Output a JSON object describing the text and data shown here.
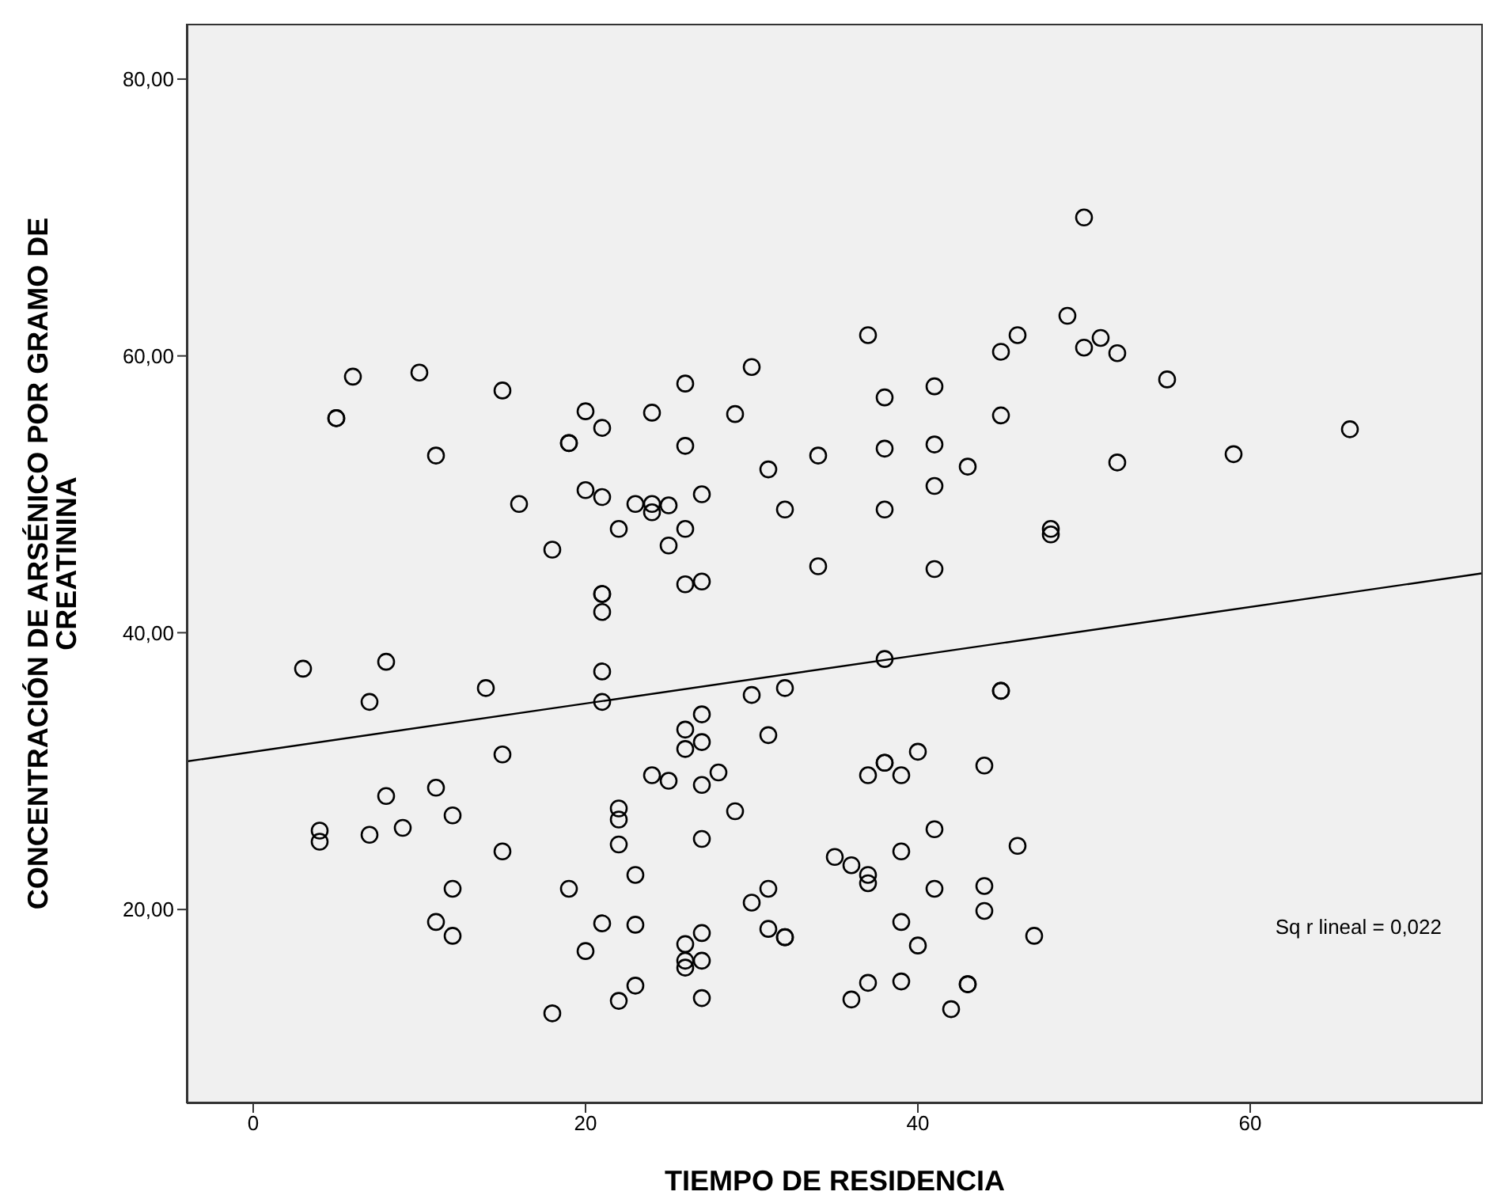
{
  "chart_data": {
    "type": "scatter",
    "xlabel": "TIEMPO DE RESIDENCIA",
    "ylabel": "CONCENTRACIÓN DE ARSÉNICO POR GRAMO DE CREATININA",
    "xlim": [
      -4,
      74
    ],
    "ylim": [
      6,
      84
    ],
    "xticks": [
      0,
      20,
      40,
      60
    ],
    "yticks": [
      {
        "value": 20,
        "label": "20,00"
      },
      {
        "value": 40,
        "label": "40,00"
      },
      {
        "value": 60,
        "label": "60,00"
      },
      {
        "value": 80,
        "label": "80,00"
      }
    ],
    "grid": false,
    "annotations": [
      "Sq r lineal = 0,022"
    ],
    "series": [
      {
        "color": "#000000",
        "marker": "circle",
        "x": [
          5,
          5,
          6,
          10,
          11,
          15,
          16,
          18,
          19,
          19,
          20,
          20,
          21,
          21,
          21,
          21,
          21,
          22,
          23,
          24,
          24,
          24,
          25,
          25,
          26,
          26,
          26,
          26,
          27,
          27,
          29,
          30,
          31,
          32,
          34,
          34,
          37,
          38,
          38,
          38,
          41,
          41,
          41,
          41,
          43,
          45,
          45,
          46,
          48,
          48,
          49,
          50,
          50,
          51,
          52,
          52,
          55,
          59,
          66,
          3,
          7,
          8,
          14,
          21,
          21,
          38,
          45,
          45,
          15,
          26,
          26,
          27,
          27,
          30,
          31,
          32,
          24,
          25,
          27,
          28,
          37,
          38,
          38,
          39,
          40,
          44,
          4,
          4,
          7,
          8,
          9,
          11,
          12,
          15,
          22,
          22,
          22,
          27,
          29,
          41,
          39,
          46,
          35,
          36,
          37,
          37,
          12,
          19,
          23,
          31,
          41,
          44,
          44,
          11,
          12,
          20,
          21,
          23,
          26,
          27,
          26,
          26,
          27,
          30,
          31,
          32,
          32,
          39,
          40,
          47,
          18,
          22,
          23,
          27,
          36,
          37,
          39,
          42,
          43,
          43
        ],
        "values": [
          55.5,
          55.5,
          58.5,
          58.8,
          52.8,
          57.5,
          49.3,
          46,
          53.7,
          53.7,
          56,
          50.3,
          54.8,
          49.8,
          42.8,
          42.8,
          41.5,
          47.5,
          49.3,
          49.3,
          48.7,
          55.9,
          49.2,
          46.3,
          58,
          53.5,
          47.5,
          43.5,
          50,
          43.7,
          55.8,
          59.2,
          51.8,
          48.9,
          52.8,
          44.8,
          61.5,
          57,
          53.3,
          48.9,
          57.8,
          53.6,
          50.6,
          44.6,
          52,
          60.3,
          55.7,
          61.5,
          47.5,
          47.1,
          62.9,
          70,
          60.6,
          61.3,
          60.2,
          52.3,
          58.3,
          52.9,
          54.7,
          37.4,
          35,
          37.9,
          36,
          37.2,
          35,
          38.1,
          35.8,
          35.8,
          31.2,
          33,
          31.6,
          34.1,
          32.1,
          35.5,
          32.6,
          36,
          29.7,
          29.3,
          29,
          29.9,
          29.7,
          30.6,
          30.6,
          29.7,
          31.4,
          30.4,
          25.7,
          24.9,
          25.4,
          28.2,
          25.9,
          28.8,
          26.8,
          24.2,
          27.3,
          26.5,
          24.7,
          25.1,
          27.1,
          25.8,
          24.2,
          24.6,
          23.8,
          23.2,
          22.5,
          21.9,
          21.5,
          21.5,
          22.5,
          21.5,
          21.5,
          21.7,
          19.9,
          19.1,
          18.1,
          17,
          19,
          18.9,
          17.5,
          18.3,
          16.3,
          15.8,
          16.3,
          20.5,
          18.6,
          18,
          18,
          19.1,
          17.4,
          18.1,
          12.5,
          13.4,
          14.5,
          13.6,
          13.5,
          14.7,
          14.8,
          12.8,
          14.6,
          14.6
        ]
      },
      {
        "type": "line",
        "color": "#000000",
        "x": [
          -4,
          74
        ],
        "values": [
          30.7,
          44.3
        ]
      }
    ]
  }
}
